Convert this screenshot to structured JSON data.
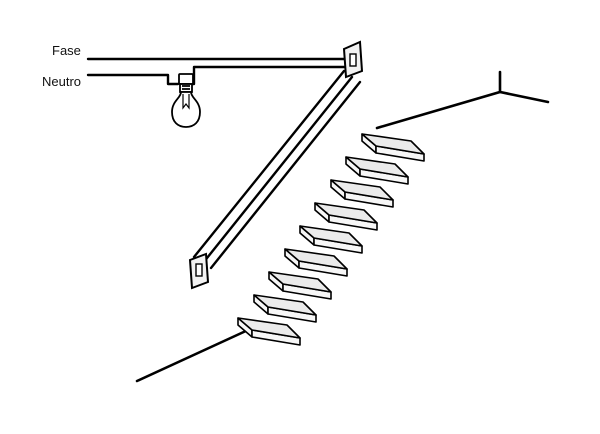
{
  "labels": {
    "phase": "Fase",
    "neutral": "Neutro"
  },
  "diagram": {
    "components": [
      "lamp-icon",
      "switch-top-icon",
      "switch-bottom-icon",
      "staircase"
    ],
    "colors": {
      "line": "#000000",
      "step_fill": "#ebebeb",
      "background": "#ffffff"
    }
  }
}
